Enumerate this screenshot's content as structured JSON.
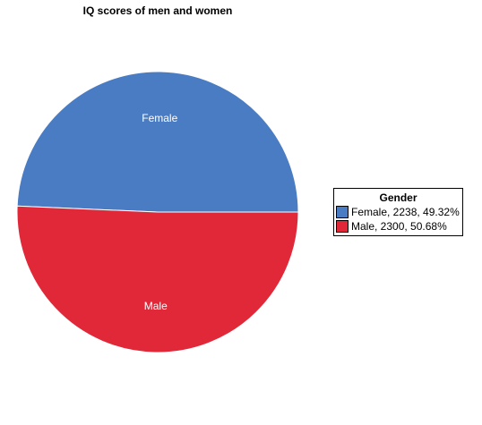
{
  "chart_data": {
    "type": "pie",
    "title": "IQ scores of men and women",
    "legend_title": "Gender",
    "legend_position": "right",
    "slices": [
      {
        "label": "Female",
        "value": 2238,
        "percent": 49.32,
        "color": "#4a7cc3",
        "legend_text": "Female, 2238, 49.32%"
      },
      {
        "label": "Male",
        "value": 2300,
        "percent": 50.68,
        "color": "#e02838",
        "legend_text": "Male, 2300, 50.68%"
      }
    ]
  }
}
